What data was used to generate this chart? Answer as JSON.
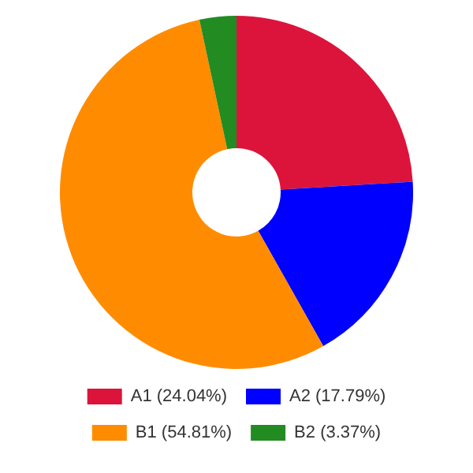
{
  "chart_data": {
    "type": "donut",
    "categories": [
      "A1 (24.04%)",
      "A2 (17.79%)",
      "B1 (54.81%)",
      "B2 (3.37%)"
    ],
    "values": [
      24.04,
      17.79,
      54.81,
      3.37
    ],
    "colors": [
      "#dc143c",
      "#0000ff",
      "#ff8c00",
      "#228b22"
    ],
    "legend": "bottom"
  }
}
